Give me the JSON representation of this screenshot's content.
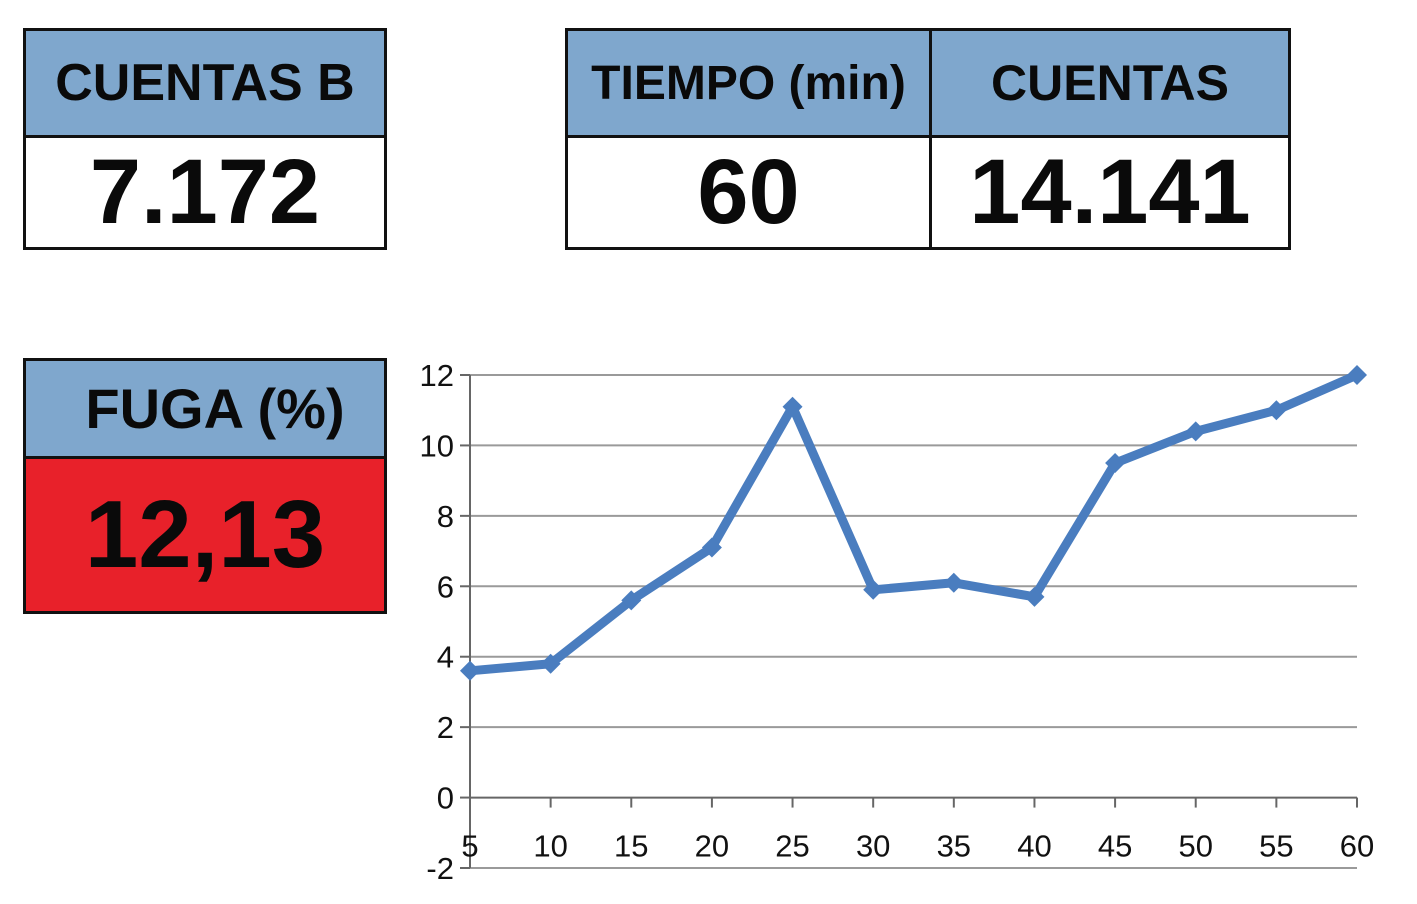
{
  "cuentas_b": {
    "label": "CUENTAS B",
    "value": "7.172"
  },
  "tiempo": {
    "label": "TIEMPO (min)",
    "value": "60"
  },
  "cuentas": {
    "label": "CUENTAS",
    "value": "14.141"
  },
  "fuga": {
    "label": "FUGA (%)",
    "value": "12,13",
    "color": "#e8212a"
  },
  "colors": {
    "header": "#7fa7cd",
    "line": "#4a7dbf"
  },
  "chart_data": {
    "type": "line",
    "x": [
      5,
      10,
      15,
      20,
      25,
      30,
      35,
      40,
      45,
      50,
      55,
      60
    ],
    "series": [
      {
        "values": [
          3.6,
          3.8,
          5.6,
          7.1,
          11.1,
          5.9,
          6.1,
          5.7,
          9.5,
          10.4,
          11.0,
          12.0
        ]
      }
    ],
    "x_ticks": [
      5,
      10,
      15,
      20,
      25,
      30,
      35,
      40,
      45,
      50,
      55,
      60
    ],
    "y_ticks": [
      -2,
      0,
      2,
      4,
      6,
      8,
      10,
      12
    ],
    "xlim": [
      5,
      60
    ],
    "ylim": [
      -2,
      12
    ],
    "grid": true,
    "title": "",
    "xlabel": "",
    "ylabel": ""
  }
}
